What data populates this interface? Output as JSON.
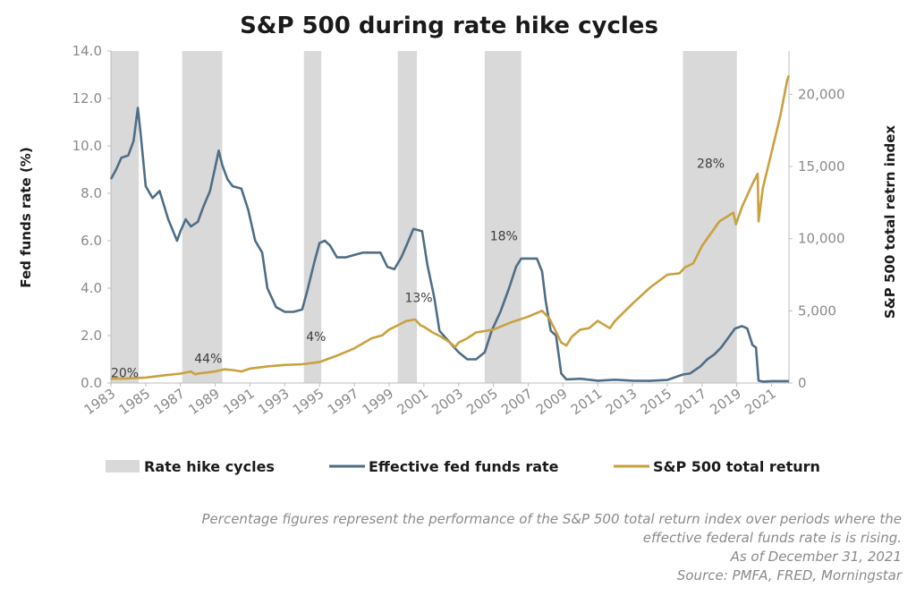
{
  "chart_data": {
    "type": "line",
    "title": "S&P 500 during rate hike cycles",
    "ylabel_left": "Fed funds rate (%)",
    "ylabel_right": "S&P 500 total retrn index",
    "xlim": [
      1983,
      2022
    ],
    "ylim_left": [
      0,
      14
    ],
    "ylim_right": [
      0,
      23000
    ],
    "yticks_left": [
      "0.0",
      "2.0",
      "4.0",
      "6.0",
      "8.0",
      "10.0",
      "12.0",
      "14.0"
    ],
    "yticks_right": [
      {
        "value": 0,
        "label": "0"
      },
      {
        "value": 5000,
        "label": "5,000"
      },
      {
        "value": 10000,
        "label": "10,000"
      },
      {
        "value": 15000,
        "label": "15,000"
      },
      {
        "value": 20000,
        "label": "20,000"
      }
    ],
    "xticks": [
      "1983",
      "1985",
      "1987",
      "1989",
      "1991",
      "1993",
      "1995",
      "1997",
      "1999",
      "2001",
      "2003",
      "2005",
      "2007",
      "2009",
      "2011",
      "2013",
      "2015",
      "2017",
      "2019",
      "2021"
    ],
    "colors": {
      "shade": "#d9d9d9",
      "fed": "#4e6e87",
      "sp": "#c9a13f"
    },
    "hike_cycles": [
      {
        "start": 1983.0,
        "end": 1984.6,
        "label": "20%",
        "label_x": 1983.8,
        "label_y": 400
      },
      {
        "start": 1987.1,
        "end": 1989.4,
        "label": "44%",
        "label_x": 1988.6,
        "label_y": 1400
      },
      {
        "start": 1994.1,
        "end": 1995.1,
        "label": "4%",
        "label_x": 1994.8,
        "label_y": 2900
      },
      {
        "start": 1999.5,
        "end": 2000.6,
        "label": "13%",
        "label_x": 2000.7,
        "label_y": 5600
      },
      {
        "start": 2004.5,
        "end": 2006.6,
        "label": "18%",
        "label_x": 2005.6,
        "label_y": 9900
      },
      {
        "start": 2015.9,
        "end": 2019.0,
        "label": "28%",
        "label_x": 2017.5,
        "label_y": 14900
      }
    ],
    "series": [
      {
        "name": "Effective fed funds rate",
        "axis": "left",
        "x": [
          1983.0,
          1983.3,
          1983.6,
          1984.0,
          1984.3,
          1984.55,
          1984.7,
          1985.0,
          1985.4,
          1985.8,
          1986.3,
          1986.8,
          1987.0,
          1987.3,
          1987.6,
          1988.0,
          1988.3,
          1988.7,
          1989.0,
          1989.2,
          1989.4,
          1989.7,
          1990.0,
          1990.5,
          1990.9,
          1991.3,
          1991.7,
          1992.0,
          1992.5,
          1993.0,
          1993.5,
          1994.0,
          1994.3,
          1994.7,
          1995.0,
          1995.3,
          1995.6,
          1996.0,
          1996.5,
          1997.0,
          1997.5,
          1998.0,
          1998.5,
          1998.9,
          1999.3,
          1999.7,
          2000.0,
          2000.4,
          2000.9,
          2001.2,
          2001.6,
          2001.9,
          2002.5,
          2003.0,
          2003.5,
          2004.0,
          2004.5,
          2004.9,
          2005.4,
          2005.9,
          2006.3,
          2006.6,
          2007.0,
          2007.5,
          2007.8,
          2008.0,
          2008.3,
          2008.6,
          2008.9,
          2009.2,
          2010,
          2011,
          2012,
          2013,
          2014,
          2015,
          2015.9,
          2016.3,
          2016.9,
          2017.3,
          2017.7,
          2018.1,
          2018.5,
          2018.9,
          2019.3,
          2019.6,
          2019.9,
          2020.1,
          2020.25,
          2020.5,
          2021,
          2021.99
        ],
        "values": [
          8.6,
          9.0,
          9.5,
          9.6,
          10.2,
          11.6,
          10.6,
          8.3,
          7.8,
          8.1,
          6.9,
          6.0,
          6.4,
          6.9,
          6.6,
          6.8,
          7.4,
          8.1,
          9.1,
          9.8,
          9.2,
          8.6,
          8.3,
          8.2,
          7.3,
          6.0,
          5.5,
          4.0,
          3.2,
          3.0,
          3.0,
          3.1,
          3.9,
          5.1,
          5.9,
          6.0,
          5.8,
          5.3,
          5.3,
          5.4,
          5.5,
          5.5,
          5.5,
          4.9,
          4.8,
          5.3,
          5.8,
          6.5,
          6.4,
          5.0,
          3.6,
          2.2,
          1.7,
          1.3,
          1.0,
          1.0,
          1.3,
          2.2,
          3.0,
          4.0,
          4.9,
          5.25,
          5.25,
          5.25,
          4.7,
          3.5,
          2.2,
          2.0,
          0.4,
          0.15,
          0.18,
          0.1,
          0.14,
          0.1,
          0.09,
          0.13,
          0.36,
          0.4,
          0.7,
          1.0,
          1.2,
          1.5,
          1.9,
          2.3,
          2.4,
          2.3,
          1.6,
          1.5,
          0.1,
          0.06,
          0.08,
          0.08
        ]
      },
      {
        "name": "S&P 500 total return",
        "axis": "right",
        "x": [
          1983,
          1984,
          1985,
          1986,
          1987.0,
          1987.6,
          1987.85,
          1988,
          1989,
          1989.5,
          1990,
          1990.5,
          1991,
          1992,
          1993,
          1994,
          1995,
          1996,
          1997,
          1998,
          1998.6,
          1999,
          1999.5,
          2000,
          2000.5,
          2000.8,
          2001,
          2001.5,
          2002,
          2002.5,
          2002.8,
          2003,
          2003.5,
          2004,
          2005,
          2006,
          2007,
          2007.8,
          2008.2,
          2008.5,
          2008.9,
          2009.2,
          2009.5,
          2010,
          2010.5,
          2011,
          2011.7,
          2012,
          2013,
          2014,
          2015,
          2015.7,
          2016,
          2016.5,
          2017,
          2018,
          2018.8,
          2018.95,
          2019.3,
          2019.9,
          2020.2,
          2020.25,
          2020.5,
          2021,
          2021.5,
          2021.9,
          2021.99
        ],
        "values": [
          300,
          320,
          380,
          520,
          650,
          800,
          600,
          650,
          800,
          950,
          900,
          800,
          1000,
          1150,
          1250,
          1300,
          1450,
          1900,
          2400,
          3100,
          3300,
          3700,
          4000,
          4300,
          4400,
          4000,
          3900,
          3500,
          3200,
          2800,
          2500,
          2800,
          3100,
          3500,
          3700,
          4200,
          4600,
          5000,
          4500,
          3800,
          2800,
          2600,
          3200,
          3700,
          3800,
          4300,
          3800,
          4300,
          5500,
          6600,
          7500,
          7600,
          8000,
          8300,
          9500,
          11200,
          11800,
          11000,
          12200,
          13800,
          14500,
          11200,
          13500,
          16000,
          18500,
          21000,
          21300
        ]
      }
    ],
    "legend": {
      "shade_label": "Rate hike cycles",
      "fed_label": "Effective fed funds rate",
      "sp_label": "S&P 500 total return"
    }
  },
  "footnote": {
    "line1": "Percentage figures represent the performance of the S&P 500 total return index over periods where the",
    "line2": "effective federal funds rate is is rising.",
    "line3": "As of December 31, 2021",
    "line4": "Source: PMFA, FRED, Morningstar"
  }
}
